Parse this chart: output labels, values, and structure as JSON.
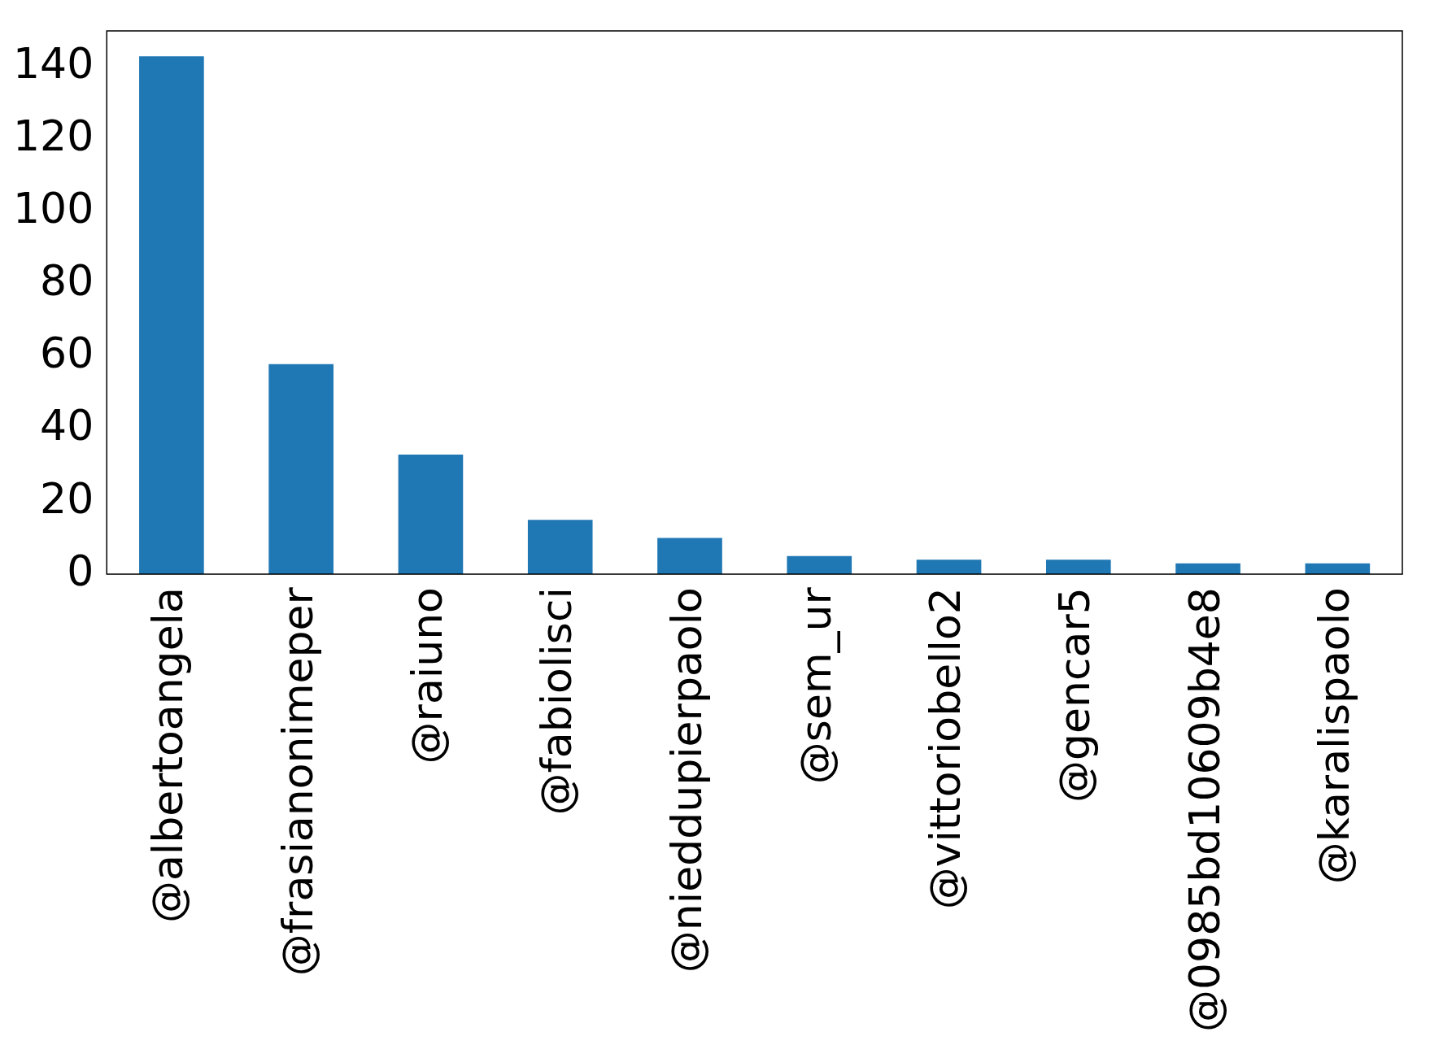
{
  "chart_data": {
    "type": "bar",
    "categories": [
      "@albertoangela",
      "@frasianonimeper",
      "@raiuno",
      "@fabiolisci",
      "@nieddupierpaolo",
      "@sem_ur",
      "@vittoriobello2",
      "@gencar5",
      "@0985bd10609b4e8",
      "@karalispaolo"
    ],
    "values": [
      143,
      58,
      33,
      15,
      10,
      5,
      4,
      4,
      3,
      3
    ],
    "color": "#1f77b4",
    "ylim": [
      0,
      150
    ],
    "yticks": [
      0,
      20,
      40,
      60,
      80,
      100,
      120,
      140
    ],
    "grid": false,
    "legend": false
  }
}
